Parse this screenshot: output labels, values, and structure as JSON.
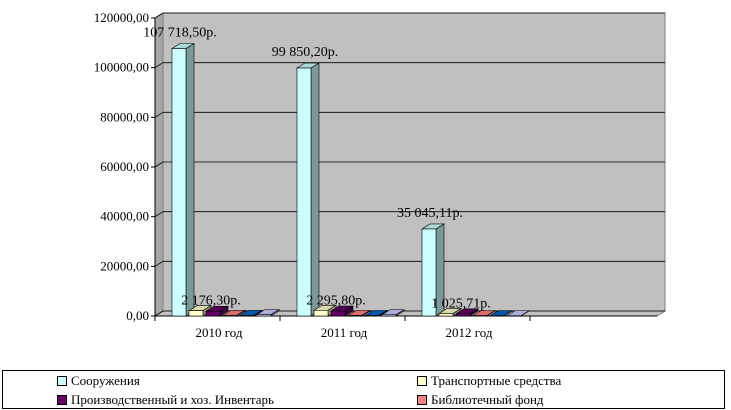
{
  "chart_data": {
    "type": "bar",
    "categories": [
      "2010 год",
      "2011 год",
      "2012 год"
    ],
    "y_ticks": [
      "0,00",
      "20000,00",
      "40000,00",
      "60000,00",
      "80000,00",
      "100000,00",
      "120000,00"
    ],
    "ylim": [
      0,
      120000
    ],
    "grid": true,
    "legend_position": "bottom",
    "series": [
      {
        "name": "Сооружения",
        "color": "#ccffff",
        "values": [
          107718.5,
          99850.2,
          35045.11
        ],
        "labels": [
          "107 718,50р.",
          "99 850,20р.",
          "35 045,11р."
        ]
      },
      {
        "name": "Транспортные средства",
        "color": "#ffffcc",
        "values": [
          2176.3,
          2295.8,
          1025.71
        ],
        "labels": [
          "2 176,30р.",
          "2 295,80р.",
          "1 025,71р."
        ]
      },
      {
        "name": "Производственный и хоз. Инвентарь",
        "color": "#660066",
        "values": [
          1900,
          2000,
          900
        ],
        "labels": [
          "",
          "",
          ""
        ]
      },
      {
        "name": "Библиотечный фонд",
        "color": "#ff8080",
        "values": [
          300,
          250,
          150
        ],
        "labels": [
          "",
          "",
          ""
        ]
      },
      {
        "name": "",
        "color": "#0066cc",
        "values": [
          250,
          200,
          120
        ],
        "labels": [
          "",
          "",
          ""
        ]
      },
      {
        "name": "",
        "color": "#ccccff",
        "values": [
          600,
          500,
          100
        ],
        "labels": [
          "",
          "",
          ""
        ]
      }
    ]
  },
  "legend": {
    "item_1": "Сооружения",
    "item_2": "Транспортные средства",
    "item_3": "Производственный и хоз. Инвентарь",
    "item_4": "Библиотечный фонд"
  }
}
